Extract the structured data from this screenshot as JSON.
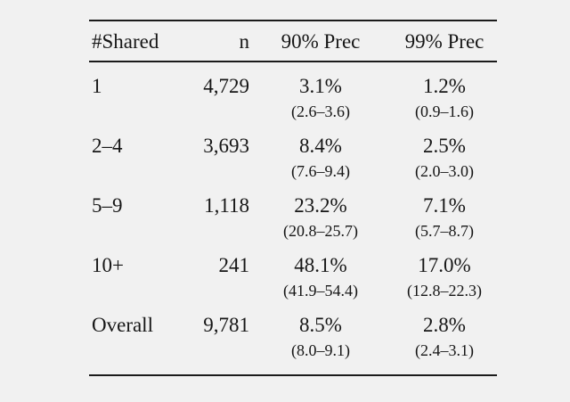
{
  "colors": {
    "background": "#f1f1f1",
    "text": "#161616",
    "rule": "#1b1b1b"
  },
  "table": {
    "headers": [
      "#Shared",
      "n",
      "90% Prec",
      "99% Prec"
    ],
    "rows": [
      {
        "shared": "1",
        "n": "4,729",
        "prec90": {
          "value": "3.1%",
          "ci": "(2.6–3.6)"
        },
        "prec99": {
          "value": "1.2%",
          "ci": "(0.9–1.6)"
        }
      },
      {
        "shared": "2–4",
        "n": "3,693",
        "prec90": {
          "value": "8.4%",
          "ci": "(7.6–9.4)"
        },
        "prec99": {
          "value": "2.5%",
          "ci": "(2.0–3.0)"
        }
      },
      {
        "shared": "5–9",
        "n": "1,118",
        "prec90": {
          "value": "23.2%",
          "ci": "(20.8–25.7)"
        },
        "prec99": {
          "value": "7.1%",
          "ci": "(5.7–8.7)"
        }
      },
      {
        "shared": "10+",
        "n": "241",
        "prec90": {
          "value": "48.1%",
          "ci": "(41.9–54.4)"
        },
        "prec99": {
          "value": "17.0%",
          "ci": "(12.8–22.3)"
        }
      },
      {
        "shared": "Overall",
        "n": "9,781",
        "prec90": {
          "value": "8.5%",
          "ci": "(8.0–9.1)"
        },
        "prec99": {
          "value": "2.8%",
          "ci": "(2.4–3.1)"
        }
      }
    ]
  }
}
